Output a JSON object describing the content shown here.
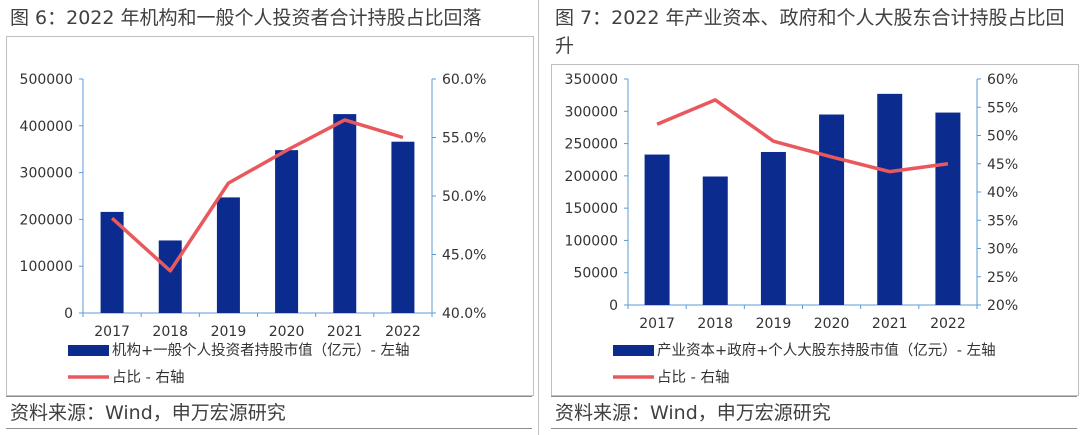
{
  "panels": [
    {
      "title": "图 6：2022 年机构和一般个人投资者合计持股占比回落",
      "source": "资料来源：Wind，申万宏源研究"
    },
    {
      "title": "图 7：2022 年产业资本、政府和个人大股东合计持股占比回升",
      "source": "资料来源：Wind，申万宏源研究"
    }
  ],
  "colors": {
    "bar": "#0b2b8f",
    "line": "#e8585c",
    "axis": "#5b9bd5"
  },
  "chart_data": [
    {
      "type": "bar",
      "categories": [
        "2017",
        "2018",
        "2019",
        "2020",
        "2021",
        "2022"
      ],
      "series": [
        {
          "name": "机构+一般个人投资者持股市值（亿元）- 左轴",
          "type": "bar",
          "axis": "left",
          "values": [
            216000,
            155000,
            247000,
            348000,
            425000,
            366000
          ]
        },
        {
          "name": "占比 - 右轴",
          "type": "line",
          "axis": "right",
          "values": [
            48.1,
            43.6,
            51.1,
            53.9,
            56.5,
            55.0
          ]
        }
      ],
      "ylim_left": [
        0,
        500000
      ],
      "yticks_left": [
        "0",
        "100000",
        "200000",
        "300000",
        "400000",
        "500000"
      ],
      "ylim_right": [
        40,
        60
      ],
      "yticks_right": [
        "40.0%",
        "45.0%",
        "50.0%",
        "55.0%",
        "60.0%"
      ],
      "legend": "bottom"
    },
    {
      "type": "bar",
      "categories": [
        "2017",
        "2018",
        "2019",
        "2020",
        "2021",
        "2022"
      ],
      "series": [
        {
          "name": "产业资本+政府+个人大股东持股市值（亿元）- 左轴",
          "type": "bar",
          "axis": "left",
          "values": [
            233000,
            199000,
            237000,
            295000,
            327000,
            298000
          ]
        },
        {
          "name": "占比 - 右轴",
          "type": "line",
          "axis": "right",
          "values": [
            52.0,
            56.3,
            49.0,
            46.2,
            43.6,
            45.0
          ]
        }
      ],
      "ylim_left": [
        0,
        350000
      ],
      "yticks_left": [
        "0",
        "50000",
        "100000",
        "150000",
        "200000",
        "250000",
        "300000",
        "350000"
      ],
      "ylim_right": [
        20,
        60
      ],
      "yticks_right": [
        "20%",
        "25%",
        "30%",
        "35%",
        "40%",
        "45%",
        "50%",
        "55%",
        "60%"
      ],
      "legend": "bottom"
    }
  ]
}
